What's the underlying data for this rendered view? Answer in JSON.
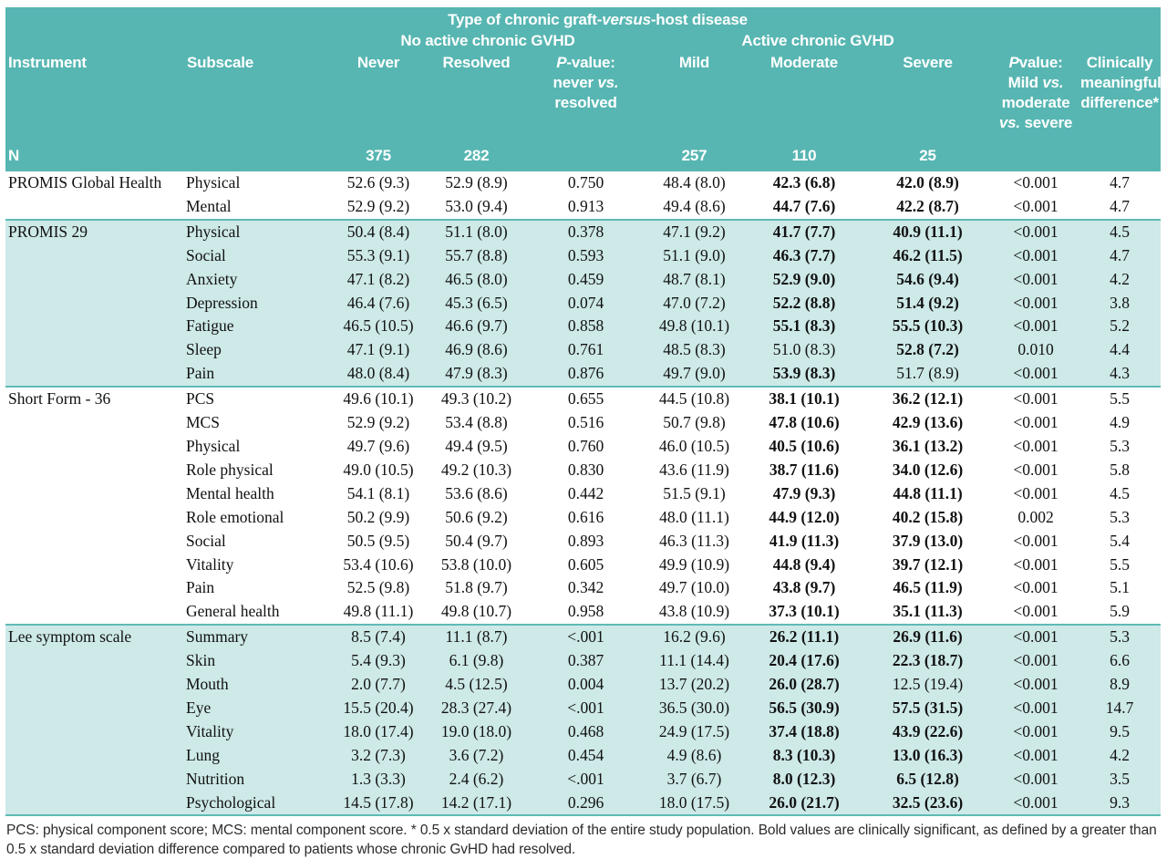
{
  "table": {
    "title": {
      "pre": "Type of chronic graft-",
      "italic": "versus",
      "post": "-host disease"
    },
    "group_headers": {
      "no_active": "No active chronic GVHD",
      "active": "Active chronic GVHD"
    },
    "columns": {
      "instrument": "Instrument",
      "subscale": "Subscale",
      "never": "Never",
      "resolved": "Resolved",
      "pvalue1": {
        "p": "P",
        "rest": "-value:",
        "l2_pre": "never ",
        "l2_vs": "vs.",
        "l2_post": " resolved"
      },
      "mild": "Mild",
      "moderate": "Moderate",
      "severe": "Severe",
      "pvalue2": {
        "p": "P",
        "rest": "value:",
        "l2_pre": "Mild ",
        "l2_vs": "vs.",
        "l3": "moderate",
        "l4_vs": "vs.",
        "l4_post": " severe"
      },
      "cmd_lines": [
        "Clinically",
        "meaningful",
        "difference*"
      ]
    },
    "n_row": {
      "label": "N",
      "never": "375",
      "resolved": "282",
      "mild": "257",
      "moderate": "110",
      "severe": "25"
    },
    "value_keys": [
      "never",
      "resolved",
      "p_never_vs_resolved",
      "mild",
      "moderate",
      "severe",
      "p_mild_mod_sev",
      "clinically_meaningful_difference"
    ],
    "sections": [
      {
        "instrument": "PROMIS Global Health",
        "shaded": false,
        "rows": [
          {
            "subscale": "Physical",
            "values": [
              "52.6 (9.3)",
              "52.9 (8.9)",
              "0.750",
              "48.4 (8.0)",
              "42.3 (6.8)",
              "42.0 (8.9)",
              "<0.001",
              "4.7"
            ],
            "bold": [
              4,
              5
            ]
          },
          {
            "subscale": "Mental",
            "values": [
              "52.9 (9.2)",
              "53.0 (9.4)",
              "0.913",
              "49.4 (8.6)",
              "44.7 (7.6)",
              "42.2 (8.7)",
              "<0.001",
              "4.7"
            ],
            "bold": [
              4,
              5
            ]
          }
        ]
      },
      {
        "instrument": "PROMIS 29",
        "shaded": true,
        "rows": [
          {
            "subscale": "Physical",
            "values": [
              "50.4 (8.4)",
              "51.1 (8.0)",
              "0.378",
              "47.1 (9.2)",
              "41.7 (7.7)",
              "40.9 (11.1)",
              "<0.001",
              "4.5"
            ],
            "bold": [
              4,
              5
            ]
          },
          {
            "subscale": "Social",
            "values": [
              "55.3 (9.1)",
              "55.7 (8.8)",
              "0.593",
              "51.1 (9.0)",
              "46.3 (7.7)",
              "46.2 (11.5)",
              "<0.001",
              "4.7"
            ],
            "bold": [
              4,
              5
            ]
          },
          {
            "subscale": "Anxiety",
            "values": [
              "47.1 (8.2)",
              "46.5 (8.0)",
              "0.459",
              "48.7 (8.1)",
              "52.9 (9.0)",
              "54.6 (9.4)",
              "<0.001",
              "4.2"
            ],
            "bold": [
              4,
              5
            ]
          },
          {
            "subscale": "Depression",
            "values": [
              "46.4 (7.6)",
              "45.3 (6.5)",
              "0.074",
              "47.0 (7.2)",
              "52.2 (8.8)",
              "51.4 (9.2)",
              "<0.001",
              "3.8"
            ],
            "bold": [
              4,
              5
            ]
          },
          {
            "subscale": "Fatigue",
            "values": [
              "46.5 (10.5)",
              "46.6 (9.7)",
              "0.858",
              "49.8 (10.1)",
              "55.1 (8.3)",
              "55.5 (10.3)",
              "<0.001",
              "5.2"
            ],
            "bold": [
              4,
              5
            ]
          },
          {
            "subscale": "Sleep",
            "values": [
              "47.1 (9.1)",
              "46.9 (8.6)",
              "0.761",
              "48.5 (8.3)",
              "51.0 (8.3)",
              "52.8 (7.2)",
              "0.010",
              "4.4"
            ],
            "bold": [
              5
            ]
          },
          {
            "subscale": "Pain",
            "values": [
              "48.0 (8.4)",
              "47.9 (8.3)",
              "0.876",
              "49.7 (9.0)",
              "53.9 (8.3)",
              "51.7 (8.9)",
              "<0.001",
              "4.3"
            ],
            "bold": [
              4
            ]
          }
        ]
      },
      {
        "instrument": "Short Form - 36",
        "shaded": false,
        "rows": [
          {
            "subscale": "PCS",
            "values": [
              "49.6 (10.1)",
              "49.3 (10.2)",
              "0.655",
              "44.5 (10.8)",
              "38.1 (10.1)",
              "36.2 (12.1)",
              "<0.001",
              "5.5"
            ],
            "bold": [
              4,
              5
            ]
          },
          {
            "subscale": "MCS",
            "values": [
              "52.9 (9.2)",
              "53.4 (8.8)",
              "0.516",
              "50.7 (9.8)",
              "47.8 (10.6)",
              "42.9 (13.6)",
              "<0.001",
              "4.9"
            ],
            "bold": [
              4,
              5
            ]
          },
          {
            "subscale": "Physical",
            "values": [
              "49.7 (9.6)",
              "49.4 (9.5)",
              "0.760",
              "46.0 (10.5)",
              "40.5 (10.6)",
              "36.1 (13.2)",
              "<0.001",
              "5.3"
            ],
            "bold": [
              4,
              5
            ]
          },
          {
            "subscale": "Role physical",
            "values": [
              "49.0 (10.5)",
              "49.2 (10.3)",
              "0.830",
              "43.6 (11.9)",
              "38.7 (11.6)",
              "34.0 (12.6)",
              "<0.001",
              "5.8"
            ],
            "bold": [
              4,
              5
            ]
          },
          {
            "subscale": "Mental health",
            "values": [
              "54.1 (8.1)",
              "53.6 (8.6)",
              "0.442",
              "51.5 (9.1)",
              "47.9 (9.3)",
              "44.8 (11.1)",
              "<0.001",
              "4.5"
            ],
            "bold": [
              4,
              5
            ]
          },
          {
            "subscale": "Role emotional",
            "values": [
              "50.2 (9.9)",
              "50.6 (9.2)",
              "0.616",
              "48.0 (11.1)",
              "44.9 (12.0)",
              "40.2 (15.8)",
              "0.002",
              "5.3"
            ],
            "bold": [
              4,
              5
            ]
          },
          {
            "subscale": "Social",
            "values": [
              "50.5 (9.5)",
              "50.4 (9.7)",
              "0.893",
              "46.3 (11.3)",
              "41.9 (11.3)",
              "37.9 (13.0)",
              "<0.001",
              "5.4"
            ],
            "bold": [
              4,
              5
            ]
          },
          {
            "subscale": "Vitality",
            "values": [
              "53.4 (10.6)",
              "53.8 (10.0)",
              "0.605",
              "49.9 (10.9)",
              "44.8 (9.4)",
              "39.7 (12.1)",
              "<0.001",
              "5.5"
            ],
            "bold": [
              4,
              5
            ]
          },
          {
            "subscale": "Pain",
            "values": [
              "52.5 (9.8)",
              "51.8 (9.7)",
              "0.342",
              "49.7 (10.0)",
              "43.8 (9.7)",
              "46.5 (11.9)",
              "<0.001",
              "5.1"
            ],
            "bold": [
              4,
              5
            ]
          },
          {
            "subscale": "General health",
            "values": [
              "49.8 (11.1)",
              "49.8 (10.7)",
              "0.958",
              "43.8 (10.9)",
              "37.3 (10.1)",
              "35.1 (11.3)",
              "<0.001",
              "5.9"
            ],
            "bold": [
              4,
              5
            ]
          }
        ]
      },
      {
        "instrument": "Lee symptom scale",
        "shaded": true,
        "rows": [
          {
            "subscale": "Summary",
            "values": [
              "8.5 (7.4)",
              "11.1 (8.7)",
              "<.001",
              "16.2 (9.6)",
              "26.2 (11.1)",
              "26.9 (11.6)",
              "<0.001",
              "5.3"
            ],
            "bold": [
              4,
              5
            ]
          },
          {
            "subscale": "Skin",
            "values": [
              "5.4 (9.3)",
              "6.1 (9.8)",
              "0.387",
              "11.1 (14.4)",
              "20.4 (17.6)",
              "22.3 (18.7)",
              "<0.001",
              "6.6"
            ],
            "bold": [
              4,
              5
            ]
          },
          {
            "subscale": "Mouth",
            "values": [
              "2.0 (7.7)",
              "4.5 (12.5)",
              "0.004",
              "13.7 (20.2)",
              "26.0 (28.7)",
              "12.5 (19.4)",
              "<0.001",
              "8.9"
            ],
            "bold": [
              4
            ]
          },
          {
            "subscale": "Eye",
            "values": [
              "15.5 (20.4)",
              "28.3 (27.4)",
              "<.001",
              "36.5 (30.0)",
              "56.5 (30.9)",
              "57.5 (31.5)",
              "<0.001",
              "14.7"
            ],
            "bold": [
              4,
              5
            ]
          },
          {
            "subscale": "Vitality",
            "values": [
              "18.0 (17.4)",
              "19.0 (18.0)",
              "0.468",
              "24.9 (17.5)",
              "37.4 (18.8)",
              "43.9 (22.6)",
              "<0.001",
              "9.5"
            ],
            "bold": [
              4,
              5
            ]
          },
          {
            "subscale": "Lung",
            "values": [
              "3.2 (7.3)",
              "3.6 (7.2)",
              "0.454",
              "4.9 (8.6)",
              "8.3 (10.3)",
              "13.0 (16.3)",
              "<0.001",
              "4.2"
            ],
            "bold": [
              4,
              5
            ]
          },
          {
            "subscale": "Nutrition",
            "values": [
              "1.3 (3.3)",
              "2.4 (6.2)",
              "<.001",
              "3.7 (6.7)",
              "8.0 (12.3)",
              "6.5 (12.8)",
              "<0.001",
              "3.5"
            ],
            "bold": [
              4,
              5
            ]
          },
          {
            "subscale": "Psychological",
            "values": [
              "14.5 (17.8)",
              "14.2 (17.1)",
              "0.296",
              "18.0 (17.5)",
              "26.0 (21.7)",
              "32.5 (23.6)",
              "<0.001",
              "9.3"
            ],
            "bold": [
              4,
              5
            ]
          }
        ]
      }
    ],
    "footnote_lines": [
      "PCS: physical component score; MCS: mental component score. * 0.5 x standard deviation of the entire study population. Bold values are clinically significant, as defined by a greater than",
      "0.5 x standard deviation difference compared to patients whose chronic GvHD had resolved."
    ],
    "colors": {
      "header_teal": "#57b6b2",
      "band": "#cde9e8",
      "rule": "#5fbab6"
    }
  }
}
